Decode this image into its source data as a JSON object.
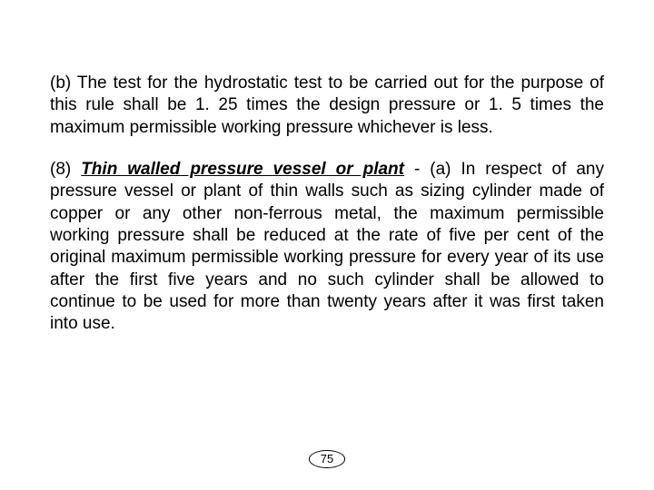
{
  "document": {
    "para_b": "(b) The test for the hydrostatic test to be carried out for the purpose of this rule shall be 1. 25 times the design pressure or 1. 5 times the maximum permissible working pressure whichever is less.",
    "para_8_prefix": "(8) ",
    "para_8_heading": "Thin walled pressure vessel or plant",
    "para_8_rest": " - (a) In respect of any pressure vessel or plant of thin walls such as sizing cylinder made of copper or any other non-ferrous metal, the maximum permissible working pressure shall be reduced at the rate of five per cent of the original maximum permissible working pressure for every year of its use after the first five years and no such cylinder shall be allowed to continue to be used for more than twenty years after it was first taken into use.",
    "page_number": "75"
  },
  "style": {
    "background_color": "#ffffff",
    "text_color": "#000000",
    "body_fontsize": 19,
    "page_number_fontsize": 13,
    "font_family": "Arial"
  }
}
